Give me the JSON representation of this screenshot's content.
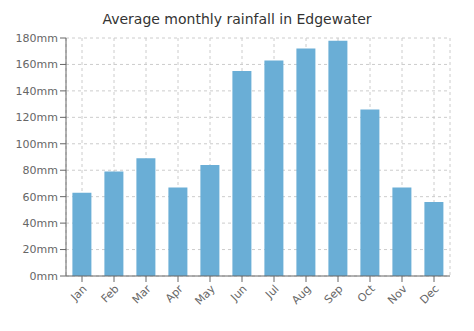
{
  "chart_data": {
    "type": "bar",
    "title": "Average monthly rainfall in Edgewater",
    "categories": [
      "Jan",
      "Feb",
      "Mar",
      "Apr",
      "May",
      "Jun",
      "Jul",
      "Aug",
      "Sep",
      "Oct",
      "Nov",
      "Dec"
    ],
    "values": [
      63,
      79,
      89,
      67,
      84,
      155,
      163,
      172,
      178,
      126,
      67,
      56
    ],
    "color": "#6aaed6",
    "ylim": [
      0,
      180
    ],
    "yticks": [
      {
        "value": 0,
        "label": "0mm"
      },
      {
        "value": 20,
        "label": "20mm"
      },
      {
        "value": 40,
        "label": "40mm"
      },
      {
        "value": 60,
        "label": "60mm"
      },
      {
        "value": 80,
        "label": "80mm"
      },
      {
        "value": 100,
        "label": "100mm"
      },
      {
        "value": 120,
        "label": "120mm"
      },
      {
        "value": 140,
        "label": "140mm"
      },
      {
        "value": 160,
        "label": "160mm"
      },
      {
        "value": 180,
        "label": "180mm"
      }
    ],
    "grid": true
  }
}
